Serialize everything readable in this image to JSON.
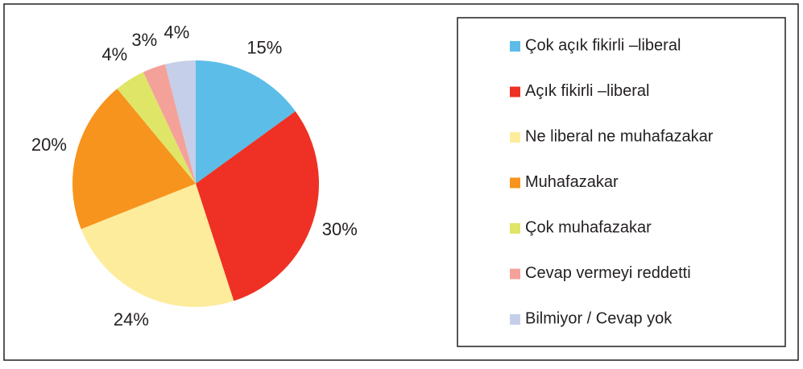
{
  "chart_data": {
    "type": "pie",
    "categories": [
      "Çok açık fikirli –liberal",
      "Açık fikirli –liberal",
      "Ne liberal ne muhafazakar",
      "Muhafazakar",
      "Çok  muhafazakar",
      "Cevap vermeyi reddetti",
      "Bilmiyor / Cevap yok"
    ],
    "values": [
      15,
      30,
      24,
      20,
      4,
      3,
      4
    ],
    "value_labels": [
      "15%",
      "30%",
      "24%",
      "20%",
      "4%",
      "3%",
      "4%"
    ],
    "colors": [
      "#5bbde8",
      "#ee3124",
      "#fdec9c",
      "#f7941d",
      "#dfe567",
      "#f4a19a",
      "#c5cfe9"
    ],
    "legend": "right"
  }
}
